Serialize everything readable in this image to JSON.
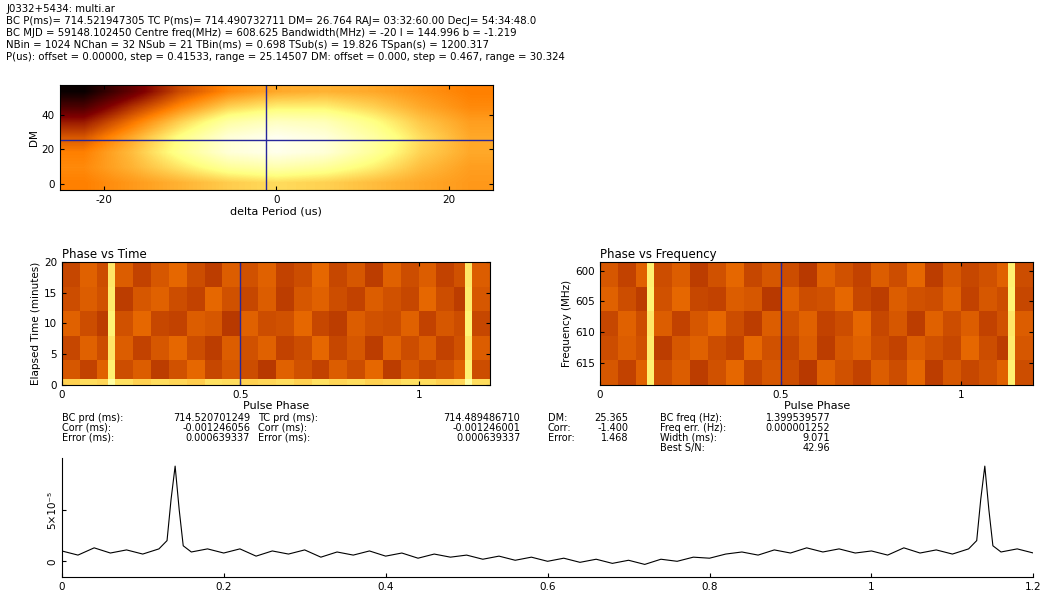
{
  "header": {
    "lines": [
      "J0332+5434: multi.ar",
      "BC P(ms)= 714.521947305 TC P(ms)= 714.490732711 DM= 26.764 RAJ= 03:32:60.00 DecJ= 54:34:48.0",
      "BC MJD = 59148.102450 Centre freq(MHz) = 608.625 Bandwidth(MHz) = -20 l = 144.996 b = -1.219",
      "NBin = 1024 NChan = 32 NSub = 21 TBin(ms) = 0.698 TSub(s) = 19.826 TSpan(s) = 1200.317",
      "P(us): offset = 0.00000, step = 0.41533, range = 25.14507 DM: offset = 0.000, step = 0.467, range = 30.324"
    ]
  },
  "summary": {
    "columns": [
      {
        "labels": [
          "BC prd (ms):",
          "Corr (ms):",
          "Error (ms):"
        ],
        "values": [
          "714.520701249",
          "-0.001246056",
          "0.000639337"
        ]
      },
      {
        "labels": [
          "TC prd (ms):",
          "Corr (ms):",
          "Error (ms):"
        ],
        "values": [
          "714.489486710",
          "-0.001246001",
          "0.000639337"
        ]
      },
      {
        "labels": [
          "DM:",
          "Corr:",
          "Error:"
        ],
        "values": [
          "25.365",
          "-1.400",
          "1.468"
        ]
      },
      {
        "labels": [
          "BC freq (Hz):",
          "Freq err. (Hz):",
          "Width (ms):",
          "Best S/N:"
        ],
        "values": [
          "1.399539577",
          "0.000001252",
          "9.071",
          "42.96"
        ]
      }
    ]
  },
  "chart_data": [
    {
      "type": "heatmap",
      "x_label": "delta Period (us)",
      "y_label": "DM",
      "xlim": [
        -25.14507,
        25.14507
      ],
      "ylim": [
        -3.56,
        57.088
      ],
      "xticks": [
        -20,
        0,
        20
      ],
      "yticks": [
        0,
        20,
        40
      ],
      "color_range": [
        0,
        1
      ],
      "cursor": {
        "x": [
          -1.246
        ],
        "y": [
          25.365
        ]
      },
      "cells": [
        [
          0.5,
          0.55,
          0.6,
          0.65,
          0.68,
          0.66,
          0.62,
          0.58,
          0.55
        ],
        [
          0.52,
          0.6,
          0.7,
          0.8,
          0.84,
          0.8,
          0.72,
          0.62,
          0.56
        ],
        [
          0.5,
          0.62,
          0.78,
          0.92,
          0.96,
          0.92,
          0.8,
          0.66,
          0.58
        ],
        [
          0.42,
          0.58,
          0.76,
          0.92,
          0.97,
          0.93,
          0.82,
          0.68,
          0.58
        ],
        [
          0.3,
          0.48,
          0.66,
          0.82,
          0.88,
          0.86,
          0.76,
          0.64,
          0.56
        ],
        [
          0.15,
          0.35,
          0.52,
          0.66,
          0.72,
          0.72,
          0.66,
          0.58,
          0.52
        ],
        [
          0.02,
          0.2,
          0.4,
          0.52,
          0.58,
          0.6,
          0.58,
          0.54,
          0.5
        ]
      ]
    },
    {
      "type": "heatmap",
      "title": "Phase vs Time",
      "x_label": "Pulse Phase",
      "y_label": "Elapsed Time (minutes)",
      "xlim": [
        0,
        1.2
      ],
      "ylim": [
        0,
        20
      ],
      "xticks": [
        0,
        0.5,
        1
      ],
      "yticks": [
        0,
        5,
        10,
        15,
        20
      ],
      "color_range": [
        0,
        1
      ],
      "cursor": {
        "x": [
          0.5
        ]
      },
      "x_edges": [
        0,
        0.05,
        0.1,
        0.13,
        0.15,
        0.2,
        0.25,
        0.3,
        0.35,
        0.4,
        0.45,
        0.5,
        0.55,
        0.6,
        0.65,
        0.7,
        0.75,
        0.8,
        0.85,
        0.9,
        0.95,
        1.0,
        1.05,
        1.1,
        1.13,
        1.15,
        1.2
      ],
      "y_edges": [
        0,
        1,
        4,
        8,
        12,
        16,
        20
      ],
      "cells": [
        [
          0.66,
          0.68,
          0.67,
          0.82,
          0.69,
          0.66,
          0.68,
          0.67,
          0.65,
          0.69,
          0.68,
          0.66,
          0.67,
          0.68,
          0.66,
          0.69,
          0.67,
          0.68,
          0.66,
          0.67,
          0.69,
          0.68,
          0.66,
          0.67,
          0.82,
          0.68
        ],
        [
          0.42,
          0.38,
          0.44,
          0.72,
          0.4,
          0.43,
          0.37,
          0.41,
          0.45,
          0.39,
          0.42,
          0.4,
          0.36,
          0.44,
          0.41,
          0.38,
          0.43,
          0.4,
          0.45,
          0.37,
          0.42,
          0.39,
          0.41,
          0.44,
          0.72,
          0.4
        ],
        [
          0.39,
          0.44,
          0.4,
          0.7,
          0.43,
          0.38,
          0.42,
          0.45,
          0.4,
          0.37,
          0.43,
          0.41,
          0.44,
          0.38,
          0.4,
          0.45,
          0.39,
          0.42,
          0.37,
          0.44,
          0.4,
          0.43,
          0.38,
          0.41,
          0.7,
          0.43
        ],
        [
          0.44,
          0.4,
          0.37,
          0.73,
          0.41,
          0.45,
          0.39,
          0.38,
          0.43,
          0.42,
          0.36,
          0.44,
          0.4,
          0.41,
          0.45,
          0.39,
          0.37,
          0.43,
          0.41,
          0.4,
          0.44,
          0.38,
          0.42,
          0.4,
          0.73,
          0.39
        ],
        [
          0.4,
          0.43,
          0.41,
          0.71,
          0.37,
          0.42,
          0.44,
          0.4,
          0.38,
          0.45,
          0.41,
          0.39,
          0.43,
          0.37,
          0.42,
          0.44,
          0.4,
          0.38,
          0.43,
          0.41,
          0.39,
          0.45,
          0.4,
          0.37,
          0.71,
          0.42
        ],
        [
          0.39,
          0.44,
          0.4,
          0.7,
          0.43,
          0.38,
          0.42,
          0.45,
          0.4,
          0.37,
          0.43,
          0.41,
          0.44,
          0.38,
          0.4,
          0.45,
          0.39,
          0.42,
          0.37,
          0.44,
          0.4,
          0.43,
          0.38,
          0.41,
          0.7,
          0.43
        ]
      ]
    },
    {
      "type": "heatmap",
      "title": "Phase vs Frequency",
      "x_label": "Pulse Phase",
      "y_label": "Frequency (MHz)",
      "xlim": [
        0,
        1.2
      ],
      "ylim": [
        618.625,
        598.625
      ],
      "xticks": [
        0,
        0.5,
        1
      ],
      "yticks": [
        600,
        605,
        610,
        615
      ],
      "color_range": [
        0,
        1
      ],
      "cursor": {
        "x": [
          0.5
        ]
      },
      "x_edges": [
        0,
        0.05,
        0.1,
        0.13,
        0.15,
        0.2,
        0.25,
        0.3,
        0.35,
        0.4,
        0.45,
        0.5,
        0.55,
        0.6,
        0.65,
        0.7,
        0.75,
        0.8,
        0.85,
        0.9,
        0.95,
        1.0,
        1.05,
        1.1,
        1.13,
        1.15,
        1.2
      ],
      "y_edges": [
        598.625,
        602.625,
        606.625,
        610.625,
        614.625,
        618.625
      ],
      "cells": [
        [
          0.42,
          0.38,
          0.44,
          0.72,
          0.4,
          0.43,
          0.37,
          0.41,
          0.45,
          0.39,
          0.42,
          0.4,
          0.36,
          0.44,
          0.41,
          0.38,
          0.43,
          0.4,
          0.45,
          0.37,
          0.42,
          0.39,
          0.41,
          0.44,
          0.72,
          0.4
        ],
        [
          0.44,
          0.4,
          0.37,
          0.73,
          0.41,
          0.45,
          0.39,
          0.38,
          0.43,
          0.42,
          0.36,
          0.44,
          0.4,
          0.41,
          0.45,
          0.39,
          0.37,
          0.43,
          0.41,
          0.4,
          0.44,
          0.38,
          0.42,
          0.4,
          0.73,
          0.39
        ],
        [
          0.39,
          0.44,
          0.4,
          0.7,
          0.43,
          0.38,
          0.42,
          0.45,
          0.4,
          0.37,
          0.43,
          0.41,
          0.44,
          0.38,
          0.4,
          0.45,
          0.39,
          0.42,
          0.37,
          0.44,
          0.4,
          0.43,
          0.38,
          0.41,
          0.7,
          0.43
        ],
        [
          0.4,
          0.43,
          0.41,
          0.71,
          0.37,
          0.42,
          0.44,
          0.4,
          0.38,
          0.45,
          0.41,
          0.39,
          0.43,
          0.37,
          0.42,
          0.44,
          0.4,
          0.38,
          0.43,
          0.41,
          0.39,
          0.45,
          0.4,
          0.37,
          0.71,
          0.42
        ],
        [
          0.42,
          0.38,
          0.44,
          0.72,
          0.4,
          0.43,
          0.37,
          0.41,
          0.45,
          0.39,
          0.42,
          0.4,
          0.36,
          0.44,
          0.41,
          0.38,
          0.43,
          0.4,
          0.45,
          0.37,
          0.42,
          0.39,
          0.41,
          0.44,
          0.72,
          0.4
        ]
      ]
    },
    {
      "type": "line",
      "color": "#000000",
      "xlim": [
        0,
        1.2
      ],
      "xticks": [
        0,
        0.2,
        0.4,
        0.6,
        0.8,
        1,
        1.2
      ],
      "ylim": [
        -1.5e-05,
        0.0001
      ],
      "yticks": [
        0,
        {
          "value": 5e-05,
          "label": "5×10⁻⁵"
        }
      ],
      "x": [
        0,
        0.02,
        0.04,
        0.06,
        0.08,
        0.1,
        0.12,
        0.13,
        0.135,
        0.14,
        0.145,
        0.15,
        0.16,
        0.18,
        0.2,
        0.22,
        0.24,
        0.26,
        0.28,
        0.3,
        0.32,
        0.34,
        0.36,
        0.38,
        0.4,
        0.42,
        0.44,
        0.46,
        0.48,
        0.5,
        0.52,
        0.54,
        0.56,
        0.58,
        0.6,
        0.62,
        0.64,
        0.66,
        0.68,
        0.7,
        0.72,
        0.74,
        0.76,
        0.78,
        0.8,
        0.82,
        0.84,
        0.86,
        0.88,
        0.9,
        0.92,
        0.94,
        0.96,
        0.98,
        1.0,
        1.02,
        1.04,
        1.06,
        1.08,
        1.1,
        1.12,
        1.13,
        1.135,
        1.14,
        1.145,
        1.15,
        1.16,
        1.18,
        1.2
      ],
      "values": [
        1e-05,
        6e-06,
        1.3e-05,
        8e-06,
        1.1e-05,
        7e-06,
        1.2e-05,
        2e-05,
        6e-05,
        9.2e-05,
        5e-05,
        1.5e-05,
        9e-06,
        1.2e-05,
        8e-06,
        1.2e-05,
        5e-06,
        1e-05,
        7e-06,
        1.1e-05,
        4e-06,
        9e-06,
        6e-06,
        1e-05,
        5e-06,
        8e-06,
        3e-06,
        7e-06,
        4e-06,
        6e-06,
        2e-06,
        5e-06,
        1e-06,
        4e-06,
        0,
        3e-06,
        -1e-06,
        2e-06,
        -2e-06,
        1e-06,
        -3e-06,
        2e-06,
        0,
        4e-06,
        3e-06,
        7e-06,
        9e-06,
        6e-06,
        1.1e-05,
        8e-06,
        1.3e-05,
        9e-06,
        1.2e-05,
        8e-06,
        1e-05,
        6e-06,
        1.3e-05,
        8e-06,
        1.1e-05,
        7e-06,
        1.2e-05,
        2e-05,
        6e-05,
        9.2e-05,
        5e-05,
        1.5e-05,
        9e-06,
        1.2e-05,
        8e-06
      ]
    }
  ]
}
